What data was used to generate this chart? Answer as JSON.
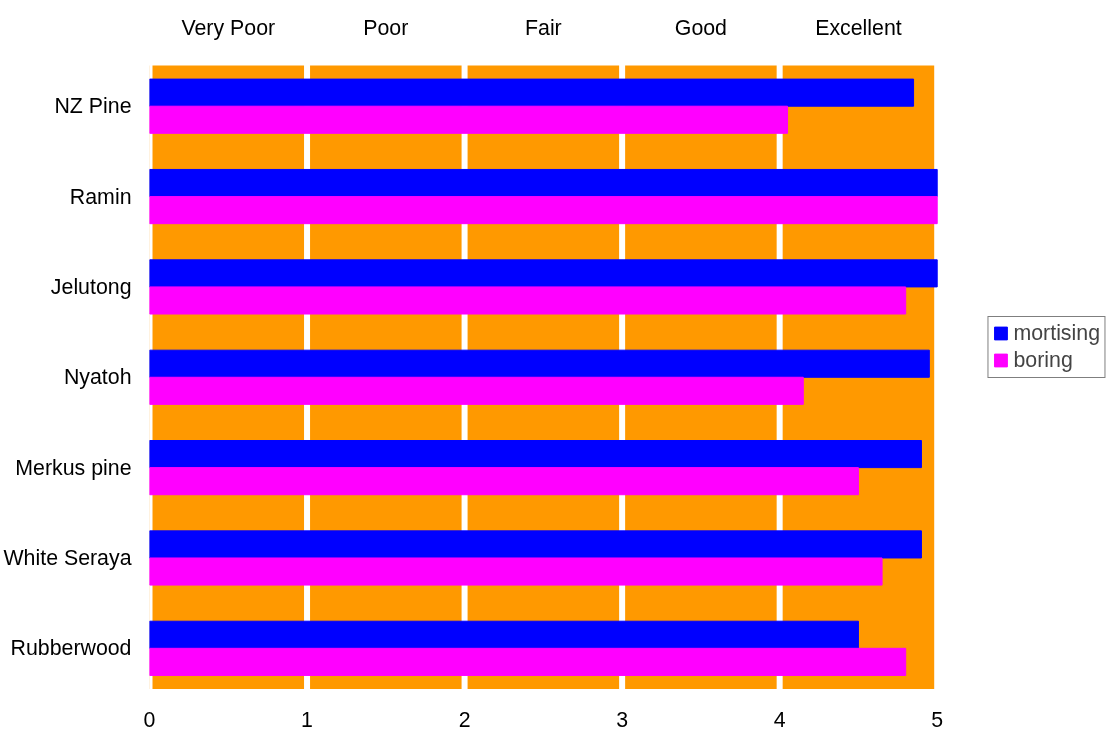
{
  "chart_data": {
    "type": "bar",
    "orientation": "horizontal",
    "categories": [
      "NZ Pine",
      "Ramin",
      "Jelutong",
      "Nyatoh",
      "Merkus pine",
      "White Seraya",
      "Rubberwood"
    ],
    "series": [
      {
        "name": "mortising",
        "color": "#0000ff",
        "values": [
          4.85,
          5,
          5,
          4.95,
          4.9,
          4.9,
          4.5
        ]
      },
      {
        "name": "boring",
        "color": "#ff00ff",
        "values": [
          4.05,
          5,
          4.8,
          4.15,
          4.5,
          4.65,
          4.8
        ]
      }
    ],
    "xlim": [
      0,
      5
    ],
    "xticks": [
      0,
      1,
      2,
      3,
      4,
      5
    ],
    "annotations": [
      "Very Poor",
      "Poor",
      "Fair",
      "Good",
      "Excellent"
    ],
    "bands": [
      {
        "axis": "x",
        "from": 0,
        "to": 5,
        "color": "#ff9900"
      }
    ],
    "grid": "x",
    "legend": "right"
  }
}
